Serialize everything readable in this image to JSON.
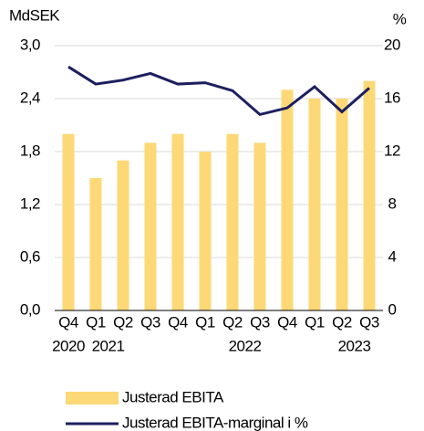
{
  "chart_data": {
    "type": "bar_line",
    "y_unit": "MdSEK",
    "y2_unit": "%",
    "categories": [
      "Q4",
      "Q1",
      "Q2",
      "Q3",
      "Q4",
      "Q1",
      "Q2",
      "Q3",
      "Q4",
      "Q1",
      "Q2",
      "Q3"
    ],
    "years": [
      "2020",
      "2021",
      null,
      null,
      null,
      null,
      "2022",
      null,
      null,
      null,
      "2023",
      null
    ],
    "series": [
      {
        "name": "Justerad EBITA",
        "type": "bar",
        "color": "#fdd876",
        "values": [
          2.0,
          1.5,
          1.7,
          1.9,
          2.0,
          1.8,
          2.0,
          1.9,
          2.5,
          2.4,
          2.4,
          2.6
        ]
      },
      {
        "name": "Justerad EBITA-marginal i %",
        "type": "line",
        "axis": "y2",
        "color": "#1c1f5e",
        "values": [
          18.4,
          17.1,
          17.4,
          17.9,
          17.1,
          17.2,
          16.6,
          14.8,
          15.3,
          16.9,
          15.0,
          16.8
        ]
      }
    ],
    "ylim": [
      0,
      3.0
    ],
    "yticks": [
      {
        "value": 0,
        "label": "0,0"
      },
      {
        "value": 0.6,
        "label": "0,6"
      },
      {
        "value": 1.2,
        "label": "1,2"
      },
      {
        "value": 1.8,
        "label": "1,8"
      },
      {
        "value": 2.4,
        "label": "2,4"
      },
      {
        "value": 3.0,
        "label": "3,0"
      }
    ],
    "y2lim": [
      0,
      20
    ],
    "y2ticks": [
      0,
      4,
      8,
      12,
      16,
      20
    ],
    "grid": true,
    "legend": "bottom"
  }
}
